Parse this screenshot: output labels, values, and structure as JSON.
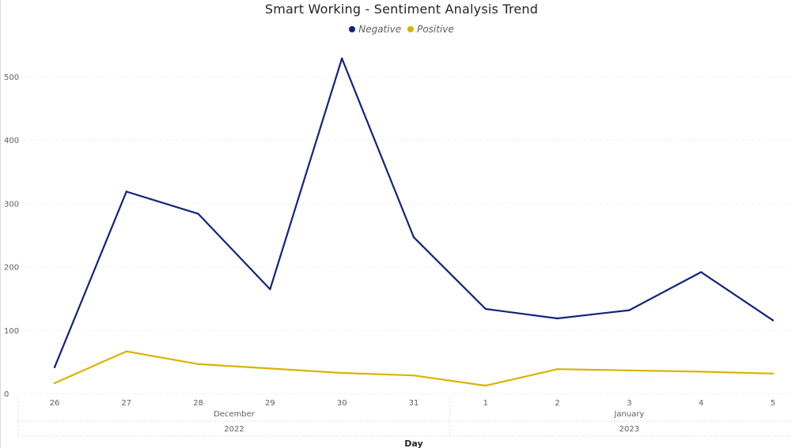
{
  "chart_data": {
    "type": "line",
    "title": "Smart Working - Sentiment Analysis Trend",
    "xlabel": "Day",
    "ylabel": "",
    "ylim": [
      0,
      550
    ],
    "y_ticks": [
      0,
      100,
      200,
      300,
      400,
      500
    ],
    "grid": true,
    "legend_position": "top-center",
    "categories": [
      "26",
      "27",
      "28",
      "29",
      "30",
      "31",
      "1",
      "2",
      "3",
      "4",
      "5"
    ],
    "month_groups": [
      {
        "month": "December",
        "year": "2022",
        "days": [
          "26",
          "27",
          "28",
          "29",
          "30",
          "31"
        ]
      },
      {
        "month": "January",
        "year": "2023",
        "days": [
          "1",
          "2",
          "3",
          "4",
          "5"
        ]
      }
    ],
    "series": [
      {
        "name": "Negative",
        "color": "#13237a",
        "values": [
          42,
          319,
          284,
          165,
          529,
          247,
          134,
          119,
          132,
          192,
          116
        ]
      },
      {
        "name": "Positive",
        "color": "#d9b300",
        "values": [
          17,
          67,
          47,
          40,
          33,
          29,
          13,
          39,
          37,
          35,
          32
        ]
      }
    ]
  }
}
